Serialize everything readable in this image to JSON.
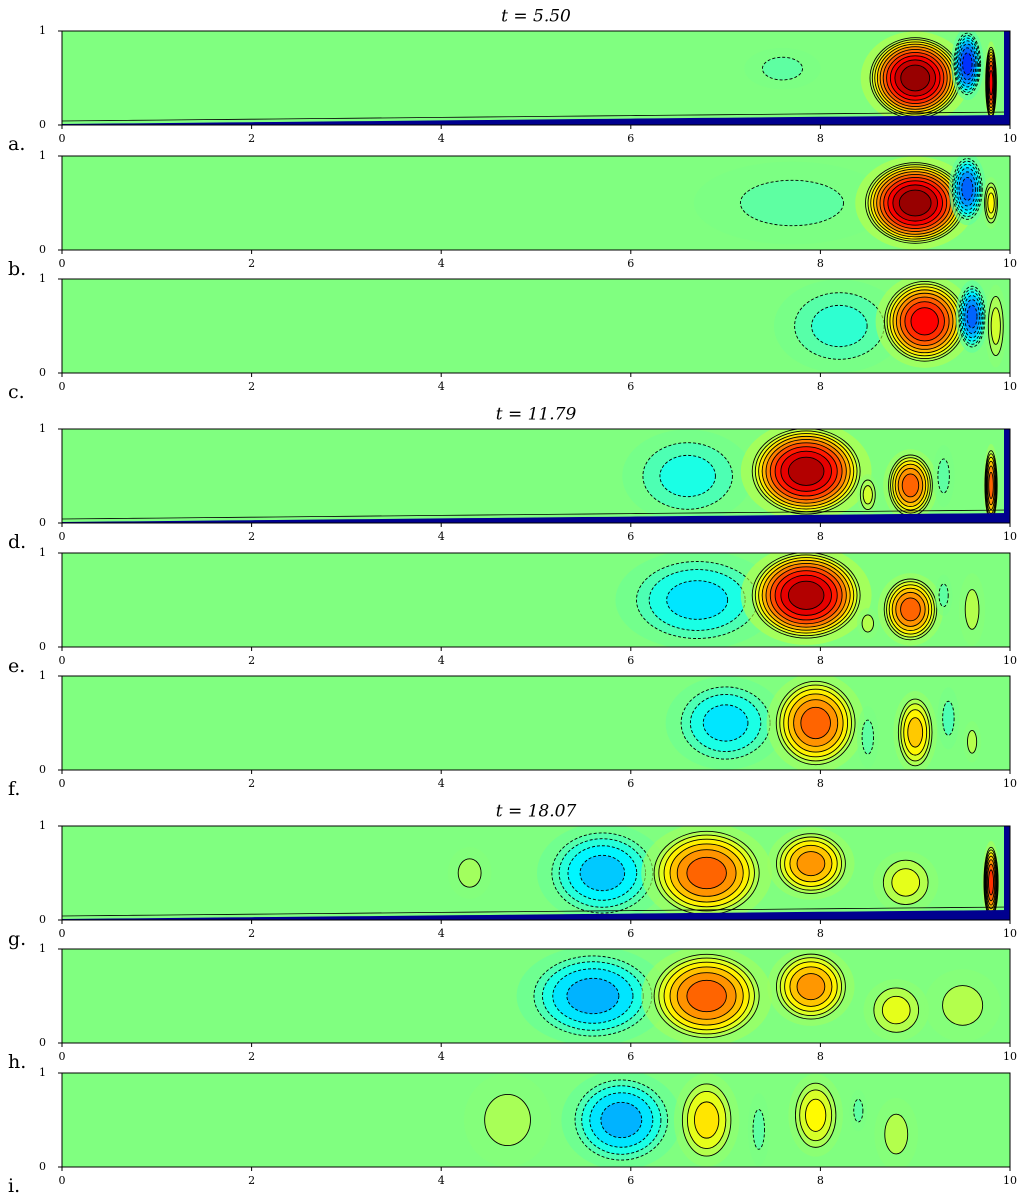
{
  "chart_data": [
    {
      "type": "contour",
      "title": "t = 5.50",
      "label": "a.",
      "xlim": [
        0,
        10
      ],
      "ylim": [
        0,
        1
      ],
      "xticks": [
        0,
        2,
        4,
        6,
        8,
        10
      ],
      "yticks": [
        0,
        1
      ],
      "colormap": "jet",
      "wall_layer": true,
      "vortices": [
        {
          "x": 7.6,
          "y": 0.6,
          "rx": 0.35,
          "ry": 0.2,
          "amp": -0.1
        },
        {
          "x": 9.0,
          "y": 0.5,
          "rx": 0.5,
          "ry": 0.45,
          "amp": 1
        },
        {
          "x": 9.55,
          "y": 0.65,
          "rx": 0.15,
          "ry": 0.35,
          "amp": -0.7
        },
        {
          "x": 9.8,
          "y": 0.45,
          "rx": 0.06,
          "ry": 0.4,
          "amp": 0.8
        }
      ]
    },
    {
      "type": "contour",
      "label": "b.",
      "xlim": [
        0,
        10
      ],
      "ylim": [
        0,
        1
      ],
      "xticks": [
        0,
        2,
        4,
        6,
        8,
        10
      ],
      "yticks": [
        0,
        1
      ],
      "colormap": "jet",
      "wall_layer": false,
      "vortices": [
        {
          "x": 7.7,
          "y": 0.5,
          "rx": 0.9,
          "ry": 0.4,
          "amp": -0.1
        },
        {
          "x": 9.0,
          "y": 0.5,
          "rx": 0.55,
          "ry": 0.45,
          "amp": 1
        },
        {
          "x": 9.55,
          "y": 0.65,
          "rx": 0.17,
          "ry": 0.35,
          "amp": -0.6
        },
        {
          "x": 9.8,
          "y": 0.5,
          "rx": 0.08,
          "ry": 0.25,
          "amp": 0.3
        }
      ]
    },
    {
      "type": "contour",
      "label": "c.",
      "xlim": [
        0,
        10
      ],
      "ylim": [
        0,
        1
      ],
      "xticks": [
        0,
        2,
        4,
        6,
        8,
        10
      ],
      "yticks": [
        0,
        1
      ],
      "colormap": "jet",
      "wall_layer": false,
      "vortices": [
        {
          "x": 8.2,
          "y": 0.5,
          "rx": 0.6,
          "ry": 0.45,
          "amp": -0.2
        },
        {
          "x": 9.1,
          "y": 0.55,
          "rx": 0.45,
          "ry": 0.45,
          "amp": 0.8
        },
        {
          "x": 9.6,
          "y": 0.6,
          "rx": 0.15,
          "ry": 0.35,
          "amp": -0.6
        },
        {
          "x": 9.85,
          "y": 0.5,
          "rx": 0.1,
          "ry": 0.4,
          "amp": 0.2
        }
      ]
    },
    {
      "type": "contour",
      "title": "t = 11.79",
      "label": "d.",
      "xlim": [
        0,
        10
      ],
      "ylim": [
        0,
        1
      ],
      "xticks": [
        0,
        2,
        4,
        6,
        8,
        10
      ],
      "yticks": [
        0,
        1
      ],
      "colormap": "jet",
      "wall_layer": true,
      "vortices": [
        {
          "x": 6.6,
          "y": 0.5,
          "rx": 0.6,
          "ry": 0.45,
          "amp": -0.25
        },
        {
          "x": 7.85,
          "y": 0.55,
          "rx": 0.6,
          "ry": 0.48,
          "amp": 0.95
        },
        {
          "x": 8.95,
          "y": 0.4,
          "rx": 0.25,
          "ry": 0.35,
          "amp": 0.6
        },
        {
          "x": 8.5,
          "y": 0.3,
          "rx": 0.1,
          "ry": 0.2,
          "amp": 0.2
        },
        {
          "x": 9.3,
          "y": 0.5,
          "rx": 0.1,
          "ry": 0.3,
          "amp": -0.1
        },
        {
          "x": 9.8,
          "y": 0.4,
          "rx": 0.07,
          "ry": 0.4,
          "amp": 0.6
        }
      ]
    },
    {
      "type": "contour",
      "label": "e.",
      "xlim": [
        0,
        10
      ],
      "ylim": [
        0,
        1
      ],
      "xticks": [
        0,
        2,
        4,
        6,
        8,
        10
      ],
      "yticks": [
        0,
        1
      ],
      "colormap": "jet",
      "wall_layer": false,
      "vortices": [
        {
          "x": 6.7,
          "y": 0.5,
          "rx": 0.75,
          "ry": 0.48,
          "amp": -0.35
        },
        {
          "x": 7.85,
          "y": 0.55,
          "rx": 0.6,
          "ry": 0.48,
          "amp": 0.95
        },
        {
          "x": 8.95,
          "y": 0.4,
          "rx": 0.3,
          "ry": 0.35,
          "amp": 0.6
        },
        {
          "x": 8.5,
          "y": 0.25,
          "rx": 0.1,
          "ry": 0.15,
          "amp": 0.15
        },
        {
          "x": 9.3,
          "y": 0.55,
          "rx": 0.08,
          "ry": 0.2,
          "amp": -0.1
        },
        {
          "x": 9.6,
          "y": 0.4,
          "rx": 0.12,
          "ry": 0.35,
          "amp": 0.15
        }
      ]
    },
    {
      "type": "contour",
      "label": "f.",
      "xlim": [
        0,
        10
      ],
      "ylim": [
        0,
        1
      ],
      "xticks": [
        0,
        2,
        4,
        6,
        8,
        10
      ],
      "yticks": [
        0,
        1
      ],
      "colormap": "jet",
      "wall_layer": false,
      "vortices": [
        {
          "x": 7.0,
          "y": 0.5,
          "rx": 0.55,
          "ry": 0.45,
          "amp": -0.35
        },
        {
          "x": 7.95,
          "y": 0.5,
          "rx": 0.45,
          "ry": 0.48,
          "amp": 0.6
        },
        {
          "x": 8.5,
          "y": 0.35,
          "rx": 0.1,
          "ry": 0.3,
          "amp": -0.1
        },
        {
          "x": 9.0,
          "y": 0.4,
          "rx": 0.2,
          "ry": 0.4,
          "amp": 0.4
        },
        {
          "x": 9.35,
          "y": 0.55,
          "rx": 0.1,
          "ry": 0.3,
          "amp": -0.15
        },
        {
          "x": 9.6,
          "y": 0.3,
          "rx": 0.08,
          "ry": 0.2,
          "amp": 0.15
        }
      ]
    },
    {
      "type": "contour",
      "title": "t = 18.07",
      "label": "g.",
      "xlim": [
        0,
        10
      ],
      "ylim": [
        0,
        1
      ],
      "xticks": [
        0,
        2,
        4,
        6,
        8,
        10
      ],
      "yticks": [
        0,
        1
      ],
      "colormap": "jet",
      "wall_layer": true,
      "vortices": [
        {
          "x": 4.3,
          "y": 0.5,
          "rx": 0.2,
          "ry": 0.25,
          "amp": 0.1
        },
        {
          "x": 5.7,
          "y": 0.5,
          "rx": 0.6,
          "ry": 0.48,
          "amp": -0.4
        },
        {
          "x": 6.8,
          "y": 0.5,
          "rx": 0.6,
          "ry": 0.48,
          "amp": 0.6
        },
        {
          "x": 7.9,
          "y": 0.6,
          "rx": 0.4,
          "ry": 0.35,
          "amp": 0.5
        },
        {
          "x": 8.9,
          "y": 0.4,
          "rx": 0.3,
          "ry": 0.3,
          "amp": 0.25
        },
        {
          "x": 9.8,
          "y": 0.4,
          "rx": 0.08,
          "ry": 0.4,
          "amp": 0.7
        }
      ]
    },
    {
      "type": "contour",
      "label": "h.",
      "xlim": [
        0,
        10
      ],
      "ylim": [
        0,
        1
      ],
      "xticks": [
        0,
        2,
        4,
        6,
        8,
        10
      ],
      "yticks": [
        0,
        1
      ],
      "colormap": "jet",
      "wall_layer": false,
      "vortices": [
        {
          "x": 5.6,
          "y": 0.5,
          "rx": 0.7,
          "ry": 0.48,
          "amp": -0.45
        },
        {
          "x": 6.8,
          "y": 0.5,
          "rx": 0.6,
          "ry": 0.48,
          "amp": 0.6
        },
        {
          "x": 7.9,
          "y": 0.6,
          "rx": 0.4,
          "ry": 0.38,
          "amp": 0.5
        },
        {
          "x": 8.8,
          "y": 0.35,
          "rx": 0.3,
          "ry": 0.3,
          "amp": 0.25
        },
        {
          "x": 9.5,
          "y": 0.4,
          "rx": 0.35,
          "ry": 0.35,
          "amp": 0.15
        }
      ]
    },
    {
      "type": "contour",
      "label": "i.",
      "xlim": [
        0,
        10
      ],
      "ylim": [
        0,
        1
      ],
      "xticks": [
        0,
        2,
        4,
        6,
        8,
        10
      ],
      "yticks": [
        0,
        1
      ],
      "colormap": "jet",
      "wall_layer": false,
      "vortices": [
        {
          "x": 4.7,
          "y": 0.5,
          "rx": 0.4,
          "ry": 0.45,
          "amp": 0.12
        },
        {
          "x": 5.9,
          "y": 0.5,
          "rx": 0.55,
          "ry": 0.48,
          "amp": -0.45
        },
        {
          "x": 6.8,
          "y": 0.5,
          "rx": 0.3,
          "ry": 0.45,
          "amp": 0.35
        },
        {
          "x": 7.35,
          "y": 0.4,
          "rx": 0.1,
          "ry": 0.35,
          "amp": -0.1
        },
        {
          "x": 7.95,
          "y": 0.55,
          "rx": 0.25,
          "ry": 0.4,
          "amp": 0.3
        },
        {
          "x": 8.4,
          "y": 0.6,
          "rx": 0.08,
          "ry": 0.2,
          "amp": -0.1
        },
        {
          "x": 8.8,
          "y": 0.35,
          "rx": 0.2,
          "ry": 0.35,
          "amp": 0.15
        }
      ]
    }
  ]
}
